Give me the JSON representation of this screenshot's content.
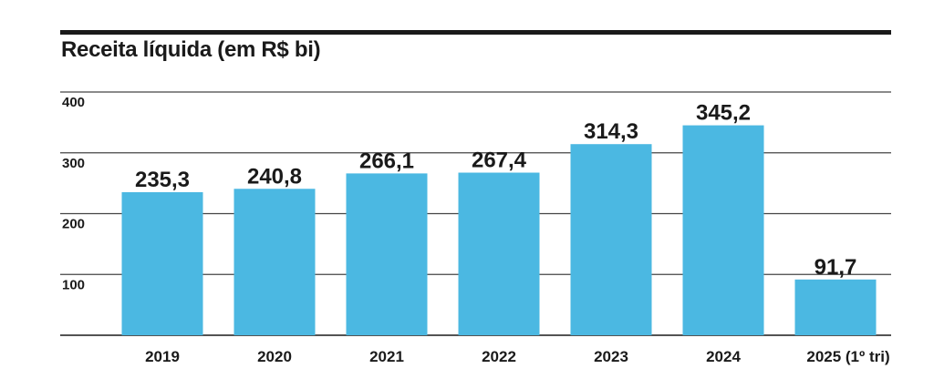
{
  "chart_data": {
    "type": "bar",
    "title": "Receita líquida (em R$ bi)",
    "categories": [
      "2019",
      "2020",
      "2021",
      "2022",
      "2023",
      "2024",
      "2025 (1º tri)"
    ],
    "values": [
      235.3,
      240.8,
      266.1,
      267.4,
      314.3,
      345.2,
      91.7
    ],
    "value_labels": [
      "235,3",
      "240,8",
      "266,1",
      "267,4",
      "314,3",
      "345,2",
      "91,7"
    ],
    "y_ticks": [
      "100",
      "200",
      "300",
      "400"
    ],
    "ylim": [
      0,
      400
    ],
    "grid": true,
    "bar_color": "#4bb8e2"
  }
}
